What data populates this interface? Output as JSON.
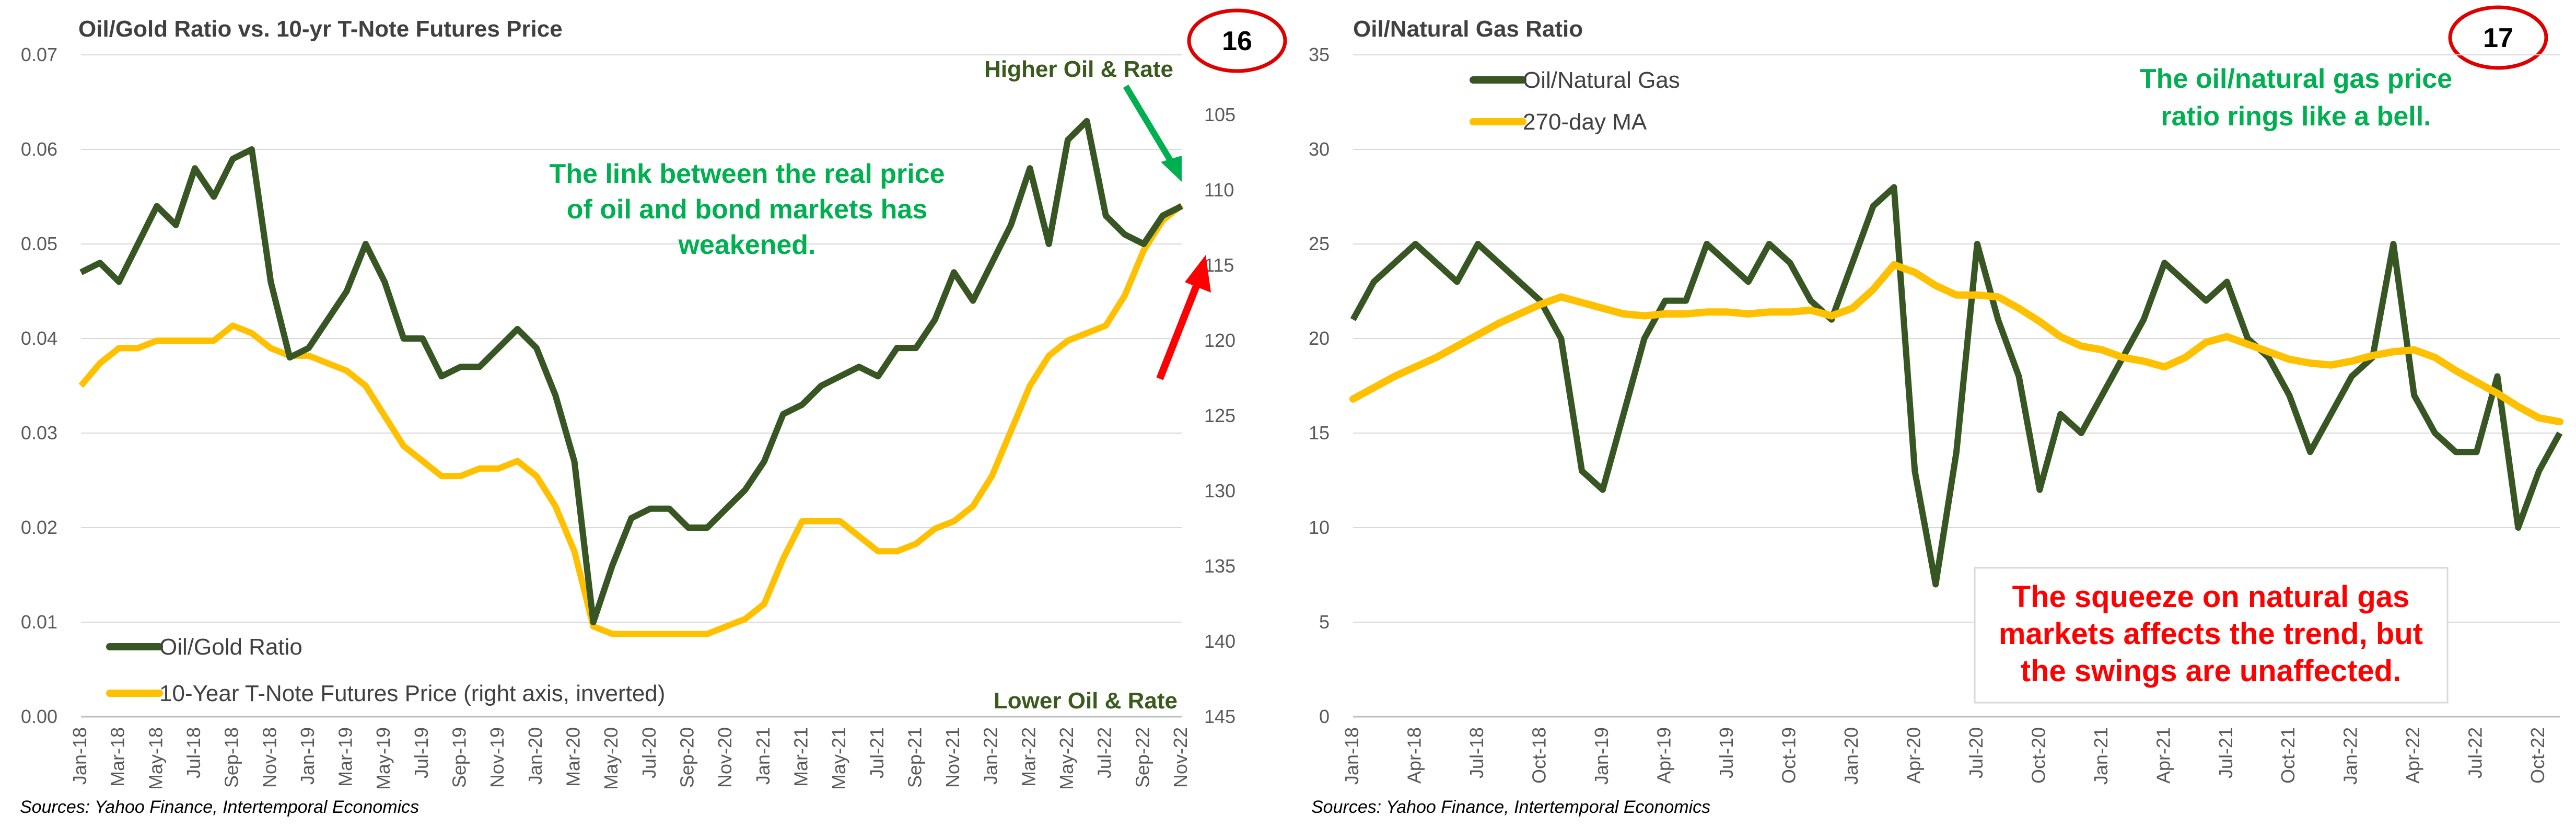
{
  "left": {
    "title": "Oil/Gold Ratio vs. 10-yr T-Note Futures Price",
    "badge": "16",
    "source": "Sources: Yahoo Finance, Intertemporal Economics",
    "annotations": {
      "top_right": "Higher Oil & Rate",
      "bottom_right": "Lower Oil & Rate",
      "center_lines": [
        "The link between the real price",
        "of oil and bond markets has",
        "weakened."
      ]
    },
    "colors": {
      "oil_gold": "#375623",
      "tnote": "#ffc000",
      "green_text": "#00b050",
      "red_arrow": "#ff0000",
      "badge_ring": "#e00000"
    }
  },
  "right": {
    "title": "Oil/Natural Gas Ratio",
    "badge": "17",
    "source": "Sources: Yahoo Finance, Intertemporal Economics",
    "annotations": {
      "top_lines": [
        "The oil/natural gas price",
        "ratio rings like a bell."
      ],
      "box_lines": [
        "The squeeze on natural gas",
        "markets affects the trend, but",
        "the swings are unaffected."
      ]
    },
    "colors": {
      "oil_gas": "#375623",
      "ma": "#ffc000",
      "green_text": "#00b050",
      "red_text": "#ff0000"
    }
  },
  "chart_data": [
    {
      "type": "line",
      "title": "Oil/Gold Ratio vs. 10-yr T-Note Futures Price",
      "x_ticks": [
        "Jan-18",
        "Mar-18",
        "May-18",
        "Jul-18",
        "Sep-18",
        "Nov-18",
        "Jan-19",
        "Mar-19",
        "May-19",
        "Jul-19",
        "Sep-19",
        "Nov-19",
        "Jan-20",
        "Mar-20",
        "May-20",
        "Jul-20",
        "Sep-20",
        "Nov-20",
        "Jan-21",
        "Mar-21",
        "May-21",
        "Jul-21",
        "Sep-21",
        "Nov-21",
        "Jan-22",
        "Mar-22",
        "May-22",
        "Jul-22",
        "Sep-22",
        "Nov-22"
      ],
      "left_axis": {
        "ylim": [
          0,
          0.07
        ],
        "ticks": [
          "0.00",
          "0.01",
          "0.02",
          "0.03",
          "0.04",
          "0.05",
          "0.06",
          "0.07"
        ]
      },
      "right_axis": {
        "ylim": [
          145,
          101
        ],
        "inverted": true,
        "ticks": [
          "105",
          "110",
          "115",
          "120",
          "125",
          "130",
          "135",
          "140",
          "145"
        ]
      },
      "series": [
        {
          "name": "Oil/Gold Ratio",
          "axis": "left",
          "x": [
            "2018-01",
            "2018-02",
            "2018-03",
            "2018-04",
            "2018-05",
            "2018-06",
            "2018-07",
            "2018-08",
            "2018-09",
            "2018-10",
            "2018-11",
            "2018-12",
            "2019-01",
            "2019-02",
            "2019-03",
            "2019-04",
            "2019-05",
            "2019-06",
            "2019-07",
            "2019-08",
            "2019-09",
            "2019-10",
            "2019-11",
            "2019-12",
            "2020-01",
            "2020-02",
            "2020-03",
            "2020-04",
            "2020-05",
            "2020-06",
            "2020-07",
            "2020-08",
            "2020-09",
            "2020-10",
            "2020-11",
            "2020-12",
            "2021-01",
            "2021-02",
            "2021-03",
            "2021-04",
            "2021-05",
            "2021-06",
            "2021-07",
            "2021-08",
            "2021-09",
            "2021-10",
            "2021-11",
            "2021-12",
            "2022-01",
            "2022-02",
            "2022-03",
            "2022-04",
            "2022-05",
            "2022-06",
            "2022-07",
            "2022-08",
            "2022-09",
            "2022-10",
            "2022-11"
          ],
          "values": [
            0.047,
            0.048,
            0.046,
            0.05,
            0.054,
            0.052,
            0.058,
            0.055,
            0.059,
            0.06,
            0.046,
            0.038,
            0.039,
            0.042,
            0.045,
            0.05,
            0.046,
            0.04,
            0.04,
            0.036,
            0.037,
            0.037,
            0.039,
            0.041,
            0.039,
            0.034,
            0.027,
            0.01,
            0.016,
            0.021,
            0.022,
            0.022,
            0.02,
            0.02,
            0.022,
            0.024,
            0.027,
            0.032,
            0.033,
            0.035,
            0.036,
            0.037,
            0.036,
            0.039,
            0.039,
            0.042,
            0.047,
            0.044,
            0.048,
            0.052,
            0.058,
            0.05,
            0.061,
            0.063,
            0.053,
            0.051,
            0.05,
            0.053,
            0.054
          ]
        },
        {
          "name": "10-Year T-Note Futures Price (right axis, inverted)",
          "axis": "right",
          "x": [
            "2018-01",
            "2018-02",
            "2018-03",
            "2018-04",
            "2018-05",
            "2018-06",
            "2018-07",
            "2018-08",
            "2018-09",
            "2018-10",
            "2018-11",
            "2018-12",
            "2019-01",
            "2019-02",
            "2019-03",
            "2019-04",
            "2019-05",
            "2019-06",
            "2019-07",
            "2019-08",
            "2019-09",
            "2019-10",
            "2019-11",
            "2019-12",
            "2020-01",
            "2020-02",
            "2020-03",
            "2020-04",
            "2020-05",
            "2020-06",
            "2020-07",
            "2020-08",
            "2020-09",
            "2020-10",
            "2020-11",
            "2020-12",
            "2021-01",
            "2021-02",
            "2021-03",
            "2021-04",
            "2021-05",
            "2021-06",
            "2021-07",
            "2021-08",
            "2021-09",
            "2021-10",
            "2021-11",
            "2021-12",
            "2022-01",
            "2022-02",
            "2022-03",
            "2022-04",
            "2022-05",
            "2022-06",
            "2022-07",
            "2022-08",
            "2022-09",
            "2022-10",
            "2022-11"
          ],
          "values": [
            123,
            121.5,
            120.5,
            120.5,
            120,
            120,
            120,
            120,
            119,
            119.5,
            120.5,
            121,
            121,
            121.5,
            122,
            123,
            125,
            127,
            128,
            129,
            129,
            128.5,
            128.5,
            128,
            129,
            131,
            134,
            139,
            139.5,
            139.5,
            139.5,
            139.5,
            139.5,
            139.5,
            139,
            138.5,
            137.5,
            134.5,
            132,
            132,
            132,
            133,
            134,
            134,
            133.5,
            132.5,
            132,
            131,
            129,
            126,
            123,
            121,
            120,
            119.5,
            119,
            117,
            114,
            112,
            111
          ]
        }
      ]
    },
    {
      "type": "line",
      "title": "Oil/Natural Gas Ratio",
      "x_ticks": [
        "Jan-18",
        "Apr-18",
        "Jul-18",
        "Oct-18",
        "Jan-19",
        "Apr-19",
        "Jul-19",
        "Oct-19",
        "Jan-20",
        "Apr-20",
        "Jul-20",
        "Oct-20",
        "Jan-21",
        "Apr-21",
        "Jul-21",
        "Oct-21",
        "Jan-22",
        "Apr-22",
        "Jul-22",
        "Oct-22"
      ],
      "ylim": [
        0,
        35
      ],
      "y_ticks": [
        "0",
        "5",
        "10",
        "15",
        "20",
        "25",
        "30",
        "35"
      ],
      "series": [
        {
          "name": "Oil/Natural Gas",
          "x": [
            "2018-01",
            "2018-02",
            "2018-03",
            "2018-04",
            "2018-05",
            "2018-06",
            "2018-07",
            "2018-08",
            "2018-09",
            "2018-10",
            "2018-11",
            "2018-12",
            "2019-01",
            "2019-02",
            "2019-03",
            "2019-04",
            "2019-05",
            "2019-06",
            "2019-07",
            "2019-08",
            "2019-09",
            "2019-10",
            "2019-11",
            "2019-12",
            "2020-01",
            "2020-02",
            "2020-03",
            "2020-04",
            "2020-05",
            "2020-06",
            "2020-07",
            "2020-08",
            "2020-09",
            "2020-10",
            "2020-11",
            "2020-12",
            "2021-01",
            "2021-02",
            "2021-03",
            "2021-04",
            "2021-05",
            "2021-06",
            "2021-07",
            "2021-08",
            "2021-09",
            "2021-10",
            "2021-11",
            "2021-12",
            "2022-01",
            "2022-02",
            "2022-03",
            "2022-04",
            "2022-05",
            "2022-06",
            "2022-07",
            "2022-08",
            "2022-09",
            "2022-10",
            "2022-11"
          ],
          "values": [
            21,
            23,
            24,
            25,
            24,
            23,
            25,
            24,
            23,
            22,
            20,
            13,
            12,
            16,
            20,
            22,
            22,
            25,
            24,
            23,
            25,
            24,
            22,
            21,
            24,
            27,
            28,
            13,
            7,
            14,
            25,
            21,
            18,
            12,
            16,
            15,
            17,
            19,
            21,
            24,
            23,
            22,
            23,
            20,
            19,
            17,
            14,
            16,
            18,
            19,
            25,
            17,
            15,
            14,
            14,
            18,
            10,
            13,
            15
          ]
        },
        {
          "name": "270-day MA",
          "x": [
            "2018-01",
            "2018-02",
            "2018-03",
            "2018-04",
            "2018-05",
            "2018-06",
            "2018-07",
            "2018-08",
            "2018-09",
            "2018-10",
            "2018-11",
            "2018-12",
            "2019-01",
            "2019-02",
            "2019-03",
            "2019-04",
            "2019-05",
            "2019-06",
            "2019-07",
            "2019-08",
            "2019-09",
            "2019-10",
            "2019-11",
            "2019-12",
            "2020-01",
            "2020-02",
            "2020-03",
            "2020-04",
            "2020-05",
            "2020-06",
            "2020-07",
            "2020-08",
            "2020-09",
            "2020-10",
            "2020-11",
            "2020-12",
            "2021-01",
            "2021-02",
            "2021-03",
            "2021-04",
            "2021-05",
            "2021-06",
            "2021-07",
            "2021-08",
            "2021-09",
            "2021-10",
            "2021-11",
            "2021-12",
            "2022-01",
            "2022-02",
            "2022-03",
            "2022-04",
            "2022-05",
            "2022-06",
            "2022-07",
            "2022-08",
            "2022-09",
            "2022-10",
            "2022-11"
          ],
          "values": [
            16.8,
            17.4,
            18.0,
            18.5,
            19.0,
            19.6,
            20.2,
            20.8,
            21.3,
            21.8,
            22.2,
            21.9,
            21.6,
            21.3,
            21.2,
            21.3,
            21.3,
            21.4,
            21.4,
            21.3,
            21.4,
            21.4,
            21.5,
            21.2,
            21.6,
            22.6,
            23.9,
            23.5,
            22.8,
            22.3,
            22.3,
            22.2,
            21.6,
            20.9,
            20.1,
            19.6,
            19.4,
            19.0,
            18.8,
            18.5,
            19.0,
            19.8,
            20.1,
            19.7,
            19.3,
            18.9,
            18.7,
            18.6,
            18.8,
            19.1,
            19.3,
            19.4,
            19.0,
            18.3,
            17.7,
            17.1,
            16.4,
            15.8,
            15.6
          ]
        }
      ]
    }
  ]
}
